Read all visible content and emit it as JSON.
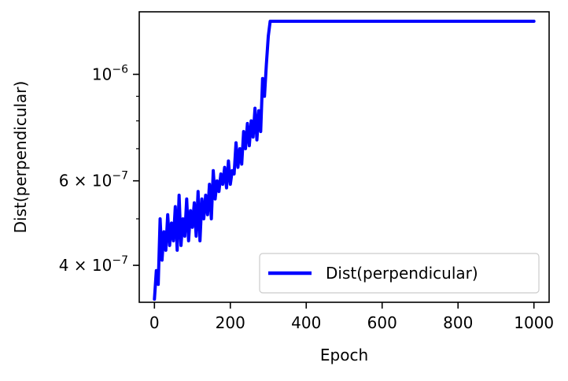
{
  "chart_data": {
    "type": "line",
    "xlabel": "Epoch",
    "ylabel": "Dist(perpendicular)",
    "xlim": [
      -40,
      1040
    ],
    "ylim": [
      3.35e-07,
      1.35e-06
    ],
    "yscale": "log",
    "xticks": [
      0,
      200,
      400,
      600,
      800,
      1000
    ],
    "xtick_labels": [
      "0",
      "200",
      "400",
      "600",
      "800",
      "1000"
    ],
    "yticks": [
      4e-07,
      6e-07,
      1e-06
    ],
    "ytick_labels": [
      {
        "mantissa": "4 × 10",
        "exp": "−7"
      },
      {
        "mantissa": "6 × 10",
        "exp": "−7"
      },
      {
        "mantissa": "10",
        "exp": "−6"
      }
    ],
    "legend": {
      "position": "lower-right"
    },
    "grid": false,
    "series": [
      {
        "name": "Dist(perpendicular)",
        "color": "#0000ff",
        "x": [
          0,
          5,
          10,
          15,
          20,
          25,
          30,
          35,
          40,
          45,
          50,
          55,
          60,
          65,
          70,
          75,
          80,
          85,
          90,
          95,
          100,
          105,
          110,
          115,
          120,
          125,
          130,
          135,
          140,
          145,
          150,
          155,
          160,
          165,
          170,
          175,
          180,
          185,
          190,
          195,
          200,
          205,
          210,
          215,
          220,
          225,
          230,
          235,
          240,
          245,
          250,
          255,
          260,
          265,
          270,
          275,
          280,
          285,
          290,
          295,
          300,
          305,
          310,
          400,
          500,
          600,
          700,
          800,
          900,
          1000
        ],
        "y": [
          3.4e-07,
          3.9e-07,
          3.65e-07,
          5e-07,
          4.1e-07,
          4.7e-07,
          4.3e-07,
          5.1e-07,
          4.4e-07,
          4.9e-07,
          4.5e-07,
          5.3e-07,
          4.3e-07,
          5.6e-07,
          4.4e-07,
          5e-07,
          4.6e-07,
          5.5e-07,
          4.5e-07,
          5.2e-07,
          4.8e-07,
          5.4e-07,
          4.6e-07,
          5.7e-07,
          4.5e-07,
          5.5e-07,
          5e-07,
          5.6e-07,
          5.1e-07,
          5.9e-07,
          5e-07,
          6.3e-07,
          5.5e-07,
          6e-07,
          5.7e-07,
          6.2e-07,
          5.9e-07,
          6.4e-07,
          5.8e-07,
          6.6e-07,
          5.9e-07,
          6.3e-07,
          6.2e-07,
          7.2e-07,
          6.4e-07,
          7e-07,
          6.5e-07,
          7.6e-07,
          7e-07,
          7.9e-07,
          7.1e-07,
          8e-07,
          7.4e-07,
          8.5e-07,
          7.3e-07,
          8.4e-07,
          7.6e-07,
          9.8e-07,
          9e-07,
          1.05e-06,
          1.2e-06,
          1.29e-06,
          1.29e-06,
          1.29e-06,
          1.29e-06,
          1.29e-06,
          1.29e-06,
          1.29e-06,
          1.29e-06,
          1.29e-06
        ]
      }
    ]
  }
}
